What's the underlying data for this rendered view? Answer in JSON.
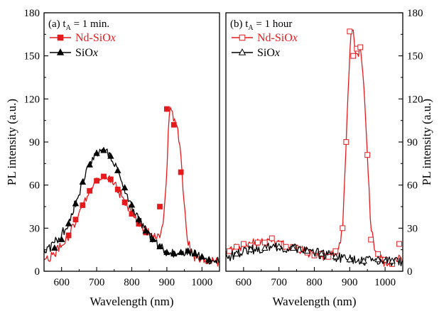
{
  "chart_data": [
    {
      "type": "line",
      "panel_label": "(a) t",
      "panel_sub": "A",
      "panel_suffix": " = 1 min.",
      "xlabel": "Wavelength (nm)",
      "ylabel": "PL intensity (a.u.)",
      "xlim": [
        550,
        1050
      ],
      "ylim": [
        0,
        180
      ],
      "xticks": [
        600,
        700,
        800,
        900,
        1000
      ],
      "yticks": [
        0,
        30,
        60,
        90,
        120,
        150,
        180
      ],
      "series": [
        {
          "name": "Nd-SiOx",
          "name_main": "Nd-SiO",
          "name_italic": "x",
          "color": "#e41a1c",
          "marker": "filled-square",
          "x": [
            560,
            580,
            600,
            620,
            640,
            660,
            680,
            700,
            720,
            740,
            760,
            780,
            800,
            820,
            840,
            860,
            870,
            880,
            890,
            900,
            905,
            910,
            915,
            920,
            925,
            930,
            935,
            940,
            950,
            960,
            980,
            1000,
            1020,
            1040
          ],
          "y": [
            8,
            12,
            18,
            25,
            35,
            45,
            56,
            63,
            66,
            64,
            57,
            49,
            40,
            33,
            28,
            24,
            22,
            25,
            35,
            70,
            105,
            115,
            110,
            105,
            104,
            100,
            90,
            80,
            45,
            20,
            10,
            8,
            7,
            7
          ],
          "markers_x": [
            620,
            640,
            660,
            680,
            700,
            720,
            740,
            760,
            780,
            800,
            820,
            840,
            880,
            900,
            920,
            940
          ],
          "markers_y": [
            25,
            36,
            46,
            56,
            63,
            66,
            64,
            57,
            48,
            40,
            33,
            27,
            45,
            113,
            102,
            69
          ]
        },
        {
          "name": "SiOx",
          "name_main": "SiO",
          "name_italic": "x",
          "color": "#000000",
          "marker": "filled-triangle",
          "x": [
            560,
            580,
            600,
            620,
            640,
            660,
            680,
            700,
            710,
            720,
            730,
            740,
            760,
            780,
            800,
            820,
            840,
            860,
            880,
            900,
            920,
            940,
            960,
            980,
            1000,
            1020,
            1040
          ],
          "y": [
            15,
            20,
            25,
            35,
            48,
            62,
            75,
            82,
            83,
            84,
            83,
            80,
            70,
            58,
            46,
            36,
            28,
            22,
            17,
            13,
            12,
            13,
            14,
            12,
            10,
            8,
            8
          ],
          "markers_x": [
            580,
            600,
            620,
            640,
            660,
            680,
            700,
            720,
            740,
            760,
            780,
            800,
            820,
            840,
            860,
            880,
            900,
            920,
            940,
            960,
            980,
            1000,
            1020
          ],
          "markers_y": [
            16,
            22,
            33,
            47,
            62,
            74,
            82,
            84,
            80,
            70,
            58,
            46,
            36,
            28,
            22,
            17,
            13,
            12,
            13,
            14,
            12,
            10,
            8
          ]
        }
      ]
    },
    {
      "type": "line",
      "panel_label": "(b) t",
      "panel_sub": "A",
      "panel_suffix": " = 1 hour",
      "xlabel": "Wavelength (nm)",
      "ylabel": "PL intensity (a.u.)",
      "xlim": [
        550,
        1050
      ],
      "ylim": [
        0,
        180
      ],
      "xticks": [
        600,
        700,
        800,
        900,
        1000
      ],
      "yticks": [
        0,
        30,
        60,
        90,
        120,
        150,
        180
      ],
      "series": [
        {
          "name": "Nd-SiOx",
          "name_main": "Nd-SiO",
          "name_italic": "x",
          "color": "#e41a1c",
          "marker": "open-square",
          "x": [
            560,
            580,
            600,
            620,
            640,
            660,
            680,
            700,
            720,
            740,
            760,
            780,
            800,
            820,
            840,
            860,
            870,
            880,
            890,
            900,
            905,
            910,
            915,
            920,
            925,
            930,
            940,
            950,
            960,
            970,
            980,
            1000,
            1020,
            1040,
            1050
          ],
          "y": [
            15,
            17,
            18,
            19,
            20,
            21,
            20,
            19,
            18,
            16,
            15,
            13,
            12,
            11,
            10,
            12,
            15,
            30,
            90,
            150,
            170,
            168,
            155,
            150,
            152,
            156,
            130,
            80,
            30,
            18,
            10,
            6,
            6,
            8,
            10
          ],
          "markers_x": [
            560,
            580,
            600,
            620,
            640,
            660,
            680,
            700,
            720,
            740,
            760,
            780,
            800,
            820,
            840,
            860,
            880,
            890,
            900,
            910,
            920,
            930,
            950,
            960,
            980,
            1000,
            1020,
            1040
          ],
          "markers_y": [
            14,
            17,
            19,
            18,
            20,
            20,
            23,
            19,
            17,
            17,
            15,
            13,
            11,
            12,
            10,
            14,
            30,
            90,
            167,
            150,
            155,
            156,
            81,
            22,
            12,
            8,
            5,
            19
          ]
        },
        {
          "name": "SiOx",
          "name_main": "SiO",
          "name_italic": "x",
          "color": "#000000",
          "marker": "open-triangle",
          "x": [
            560,
            580,
            600,
            620,
            640,
            660,
            680,
            700,
            720,
            740,
            760,
            780,
            800,
            820,
            840,
            860,
            880,
            900,
            920,
            940,
            960,
            980,
            1000,
            1020,
            1040
          ],
          "y": [
            10,
            12,
            14,
            15,
            16,
            16,
            17,
            17,
            16,
            16,
            15,
            14,
            13,
            12,
            11,
            10,
            9,
            8,
            8,
            7,
            7,
            8,
            8,
            7,
            6
          ],
          "markers_x": [
            580,
            620,
            660,
            700,
            740,
            780,
            820,
            860,
            900,
            940,
            980,
            1020
          ],
          "markers_y": [
            12,
            15,
            16,
            17,
            16,
            14,
            12,
            10,
            8,
            7,
            8,
            7
          ]
        }
      ]
    }
  ]
}
